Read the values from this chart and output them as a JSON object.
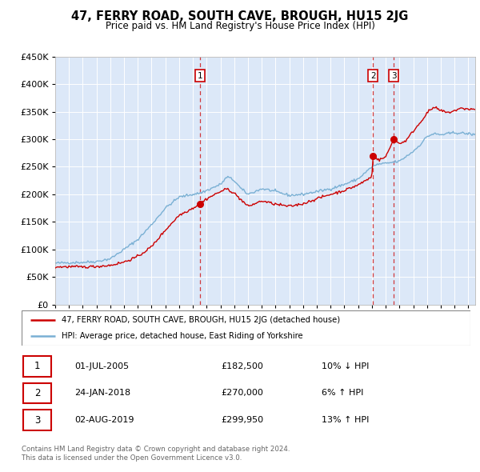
{
  "title": "47, FERRY ROAD, SOUTH CAVE, BROUGH, HU15 2JG",
  "subtitle": "Price paid vs. HM Land Registry's House Price Index (HPI)",
  "legend_line1": "47, FERRY ROAD, SOUTH CAVE, BROUGH, HU15 2JG (detached house)",
  "legend_line2": "HPI: Average price, detached house, East Riding of Yorkshire",
  "sale1_date": "01-JUL-2005",
  "sale1_price": "£182,500",
  "sale1_hpi": "10% ↓ HPI",
  "sale1_year": 2005.5,
  "sale1_value": 182500,
  "sale2_date": "24-JAN-2018",
  "sale2_price": "£270,000",
  "sale2_hpi": "6% ↑ HPI",
  "sale2_year": 2018.07,
  "sale2_value": 270000,
  "sale3_date": "02-AUG-2019",
  "sale3_price": "£299,950",
  "sale3_hpi": "13% ↑ HPI",
  "sale3_year": 2019.59,
  "sale3_value": 299950,
  "footer1": "Contains HM Land Registry data © Crown copyright and database right 2024.",
  "footer2": "This data is licensed under the Open Government Licence v3.0.",
  "ylim": [
    0,
    450000
  ],
  "xlim_start": 1995,
  "xlim_end": 2025.5,
  "plot_background": "#dce8f8",
  "red_color": "#cc0000",
  "blue_color": "#7ab0d4"
}
